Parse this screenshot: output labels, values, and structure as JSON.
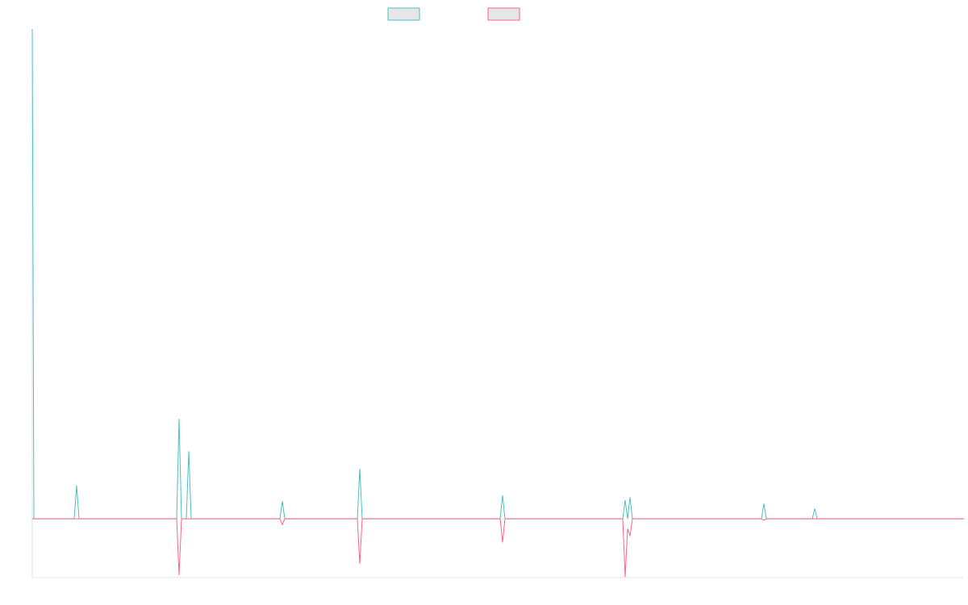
{
  "chart_data": {
    "type": "line",
    "x": [
      0,
      2,
      52,
      55,
      58,
      179,
      182,
      185,
      191,
      194,
      197,
      307,
      310,
      313,
      403,
      406,
      409,
      580,
      583,
      586,
      732,
      735,
      738,
      741,
      744,
      904,
      907,
      910,
      967,
      970,
      973,
      1155
    ],
    "xlim": [
      0,
      1155
    ],
    "ylim": [
      -12,
      100
    ],
    "series": [
      {
        "color": "#4bc0c0",
        "values": [
          100,
          0,
          0,
          6.8,
          0,
          0,
          20.4,
          0,
          0,
          13.8,
          0,
          0,
          3.6,
          0,
          0,
          10.2,
          0,
          0,
          4.8,
          0,
          0,
          3.8,
          0,
          4.4,
          0,
          0,
          3.1,
          0,
          0,
          2.1,
          0,
          0
        ]
      },
      {
        "color": "#ff6384",
        "values": [
          0,
          0,
          0,
          0,
          0,
          0,
          -11.5,
          0,
          0,
          0,
          0,
          0,
          -1.2,
          0,
          0,
          -9.2,
          0,
          0,
          -4.8,
          0,
          0,
          -11.9,
          -2,
          -3.5,
          0,
          0,
          -0.3,
          0,
          0,
          0,
          0,
          0
        ]
      }
    ]
  }
}
